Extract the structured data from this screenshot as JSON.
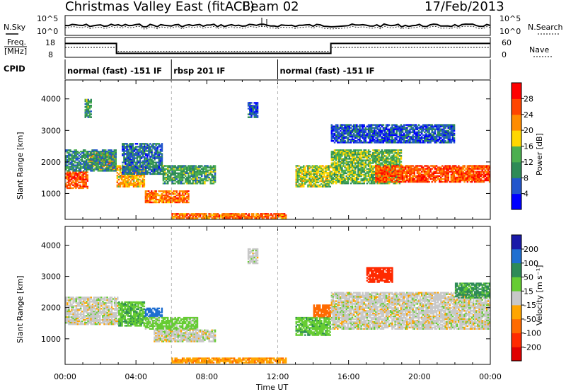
{
  "header": {
    "title": "Christmas Valley East (fitACF)",
    "beam": "Beam 02",
    "date": "17/Feb/2013"
  },
  "top_panels": {
    "noise": {
      "left_label": "N.Sky",
      "right_label": "N.Search",
      "left_ticks": [
        "10^5",
        "10^0"
      ],
      "right_ticks": [
        "10^5",
        "10^0"
      ]
    },
    "freq": {
      "left_label_1": "Freq.",
      "left_label_2": "[MHz]",
      "right_label": "Nave",
      "left_ticks": [
        "18",
        "8"
      ],
      "right_ticks": [
        "60",
        "0"
      ],
      "freq_series": [
        {
          "start": 0.0,
          "end": 2.9,
          "value": 15.0
        },
        {
          "start": 2.9,
          "end": 15.0,
          "value": 10.0
        },
        {
          "start": 15.0,
          "end": 24.0,
          "value": 15.0
        }
      ],
      "nave_series": [
        {
          "start": 0.0,
          "end": 2.9,
          "value": 30
        },
        {
          "start": 2.9,
          "end": 15.0,
          "value": 18
        },
        {
          "start": 15.0,
          "end": 24.0,
          "value": 30
        }
      ]
    },
    "cpid": {
      "label": "CPID",
      "modes": [
        {
          "label": "normal (fast) -151 IF",
          "start": 0.0,
          "end": 6.0
        },
        {
          "label": "rbsp 201 IF",
          "start": 6.0,
          "end": 12.0
        },
        {
          "label": "normal (fast) -151 IF",
          "start": 12.0,
          "end": 24.0
        }
      ]
    }
  },
  "axes": {
    "y_label": "Slant Range [km]",
    "y_ticks": [
      "1000",
      "2000",
      "3000",
      "4000"
    ],
    "x_label": "Time UT",
    "x_ticks": [
      "00:00",
      "04:00",
      "08:00",
      "12:00",
      "16:00",
      "20:00",
      "00:00"
    ]
  },
  "colorbars": {
    "power": {
      "label": "Power [dB]",
      "ticks": [
        "4",
        "8",
        "12",
        "16",
        "20",
        "24",
        "28"
      ],
      "colors": [
        "#0000ff",
        "#2255cc",
        "#2e8b57",
        "#4caf50",
        "#ffd700",
        "#ff8c00",
        "#ff4500",
        "#ff0000"
      ]
    },
    "velocity": {
      "label": "Velocity [m s⁻¹]",
      "ticks": [
        "200",
        "100",
        "50",
        "15",
        "-15",
        "-50",
        "-100",
        "-200"
      ],
      "colors": [
        "#1a1aa8",
        "#1f6fd1",
        "#2e8b57",
        "#66cc33",
        "#c8c8c8",
        "#ffa500",
        "#ff6a00",
        "#ff2a00",
        "#e00000"
      ]
    }
  },
  "chart_data": [
    {
      "type": "heatmap",
      "name": "power",
      "x_unit": "hours UT",
      "y_unit": "km",
      "xlim": [
        0,
        24
      ],
      "ylim": [
        180,
        4600
      ],
      "regions": [
        {
          "t0": 0.0,
          "t1": 1.3,
          "r0": 1150,
          "r1": 1700,
          "value": 26
        },
        {
          "t0": 1.3,
          "t1": 2.9,
          "r0": 1750,
          "r1": 2300,
          "value": 22
        },
        {
          "t0": 0.0,
          "t1": 2.9,
          "r0": 1700,
          "r1": 2400,
          "value": 10
        },
        {
          "t0": 2.9,
          "t1": 4.5,
          "r0": 1200,
          "r1": 1900,
          "value": 20
        },
        {
          "t0": 3.2,
          "t1": 5.5,
          "r0": 1600,
          "r1": 2600,
          "value": 8
        },
        {
          "t0": 4.5,
          "t1": 7.0,
          "r0": 700,
          "r1": 1100,
          "value": 24
        },
        {
          "t0": 5.5,
          "t1": 8.5,
          "r0": 1300,
          "r1": 1900,
          "value": 12
        },
        {
          "t0": 6.0,
          "t1": 12.5,
          "r0": 200,
          "r1": 380,
          "value": 24
        },
        {
          "t0": 10.3,
          "t1": 10.9,
          "r0": 3400,
          "r1": 3900,
          "value": 6
        },
        {
          "t0": 13.0,
          "t1": 15.0,
          "r0": 1200,
          "r1": 1900,
          "value": 16
        },
        {
          "t0": 15.0,
          "t1": 19.0,
          "r0": 1300,
          "r1": 2400,
          "value": 14
        },
        {
          "t0": 17.5,
          "t1": 24.0,
          "r0": 1350,
          "r1": 1900,
          "value": 26
        },
        {
          "t0": 15.0,
          "t1": 22.0,
          "r0": 2600,
          "r1": 3200,
          "value": 6
        },
        {
          "t0": 1.1,
          "t1": 1.5,
          "r0": 3400,
          "r1": 4000,
          "value": 12
        }
      ]
    },
    {
      "type": "heatmap",
      "name": "velocity",
      "x_unit": "hours UT",
      "y_unit": "km",
      "xlim": [
        0,
        24
      ],
      "ylim": [
        180,
        4600
      ],
      "regions": [
        {
          "t0": 0.0,
          "t1": 3.0,
          "r0": 1450,
          "r1": 2350,
          "value": 0
        },
        {
          "t0": 3.0,
          "t1": 4.5,
          "r0": 1400,
          "r1": 2200,
          "value": 40
        },
        {
          "t0": 4.5,
          "t1": 5.5,
          "r0": 1700,
          "r1": 2000,
          "value": 180
        },
        {
          "t0": 4.5,
          "t1": 7.5,
          "r0": 1300,
          "r1": 1700,
          "value": 30
        },
        {
          "t0": 5.0,
          "t1": 8.5,
          "r0": 900,
          "r1": 1300,
          "value": 0
        },
        {
          "t0": 6.0,
          "t1": 12.5,
          "r0": 220,
          "r1": 400,
          "value": -40
        },
        {
          "t0": 13.0,
          "t1": 15.0,
          "r0": 1100,
          "r1": 1700,
          "value": 40
        },
        {
          "t0": 14.0,
          "t1": 15.0,
          "r0": 1700,
          "r1": 2100,
          "value": -80
        },
        {
          "t0": 15.0,
          "t1": 24.0,
          "r0": 1300,
          "r1": 2500,
          "value": 0
        },
        {
          "t0": 17.0,
          "t1": 18.5,
          "r0": 2800,
          "r1": 3300,
          "value": -150
        },
        {
          "t0": 22.0,
          "t1": 24.0,
          "r0": 2300,
          "r1": 2800,
          "value": 60
        },
        {
          "t0": 10.3,
          "t1": 10.9,
          "r0": 3400,
          "r1": 3900,
          "value": 0
        }
      ]
    }
  ]
}
